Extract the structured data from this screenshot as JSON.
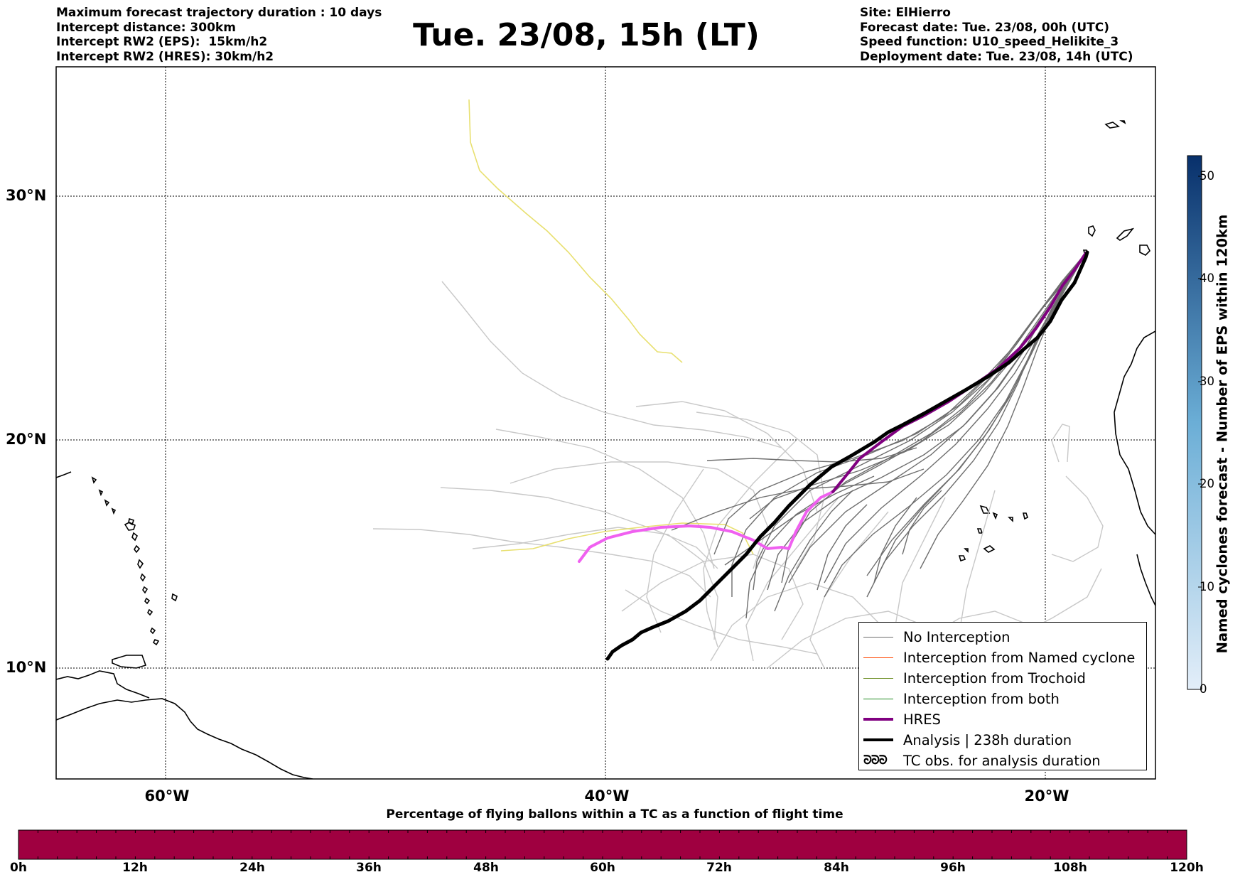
{
  "header": {
    "title": "Tue. 23/08, 15h (LT)",
    "left_lines": [
      "Maximum forecast trajectory duration : 10 days",
      "Intercept distance: 300km",
      "Intercept RW2 (EPS):  15km/h2",
      "Intercept RW2 (HRES): 30km/h2"
    ],
    "right_lines": [
      "Site: ElHierro",
      "Forecast date: Tue. 23/08, 00h (UTC)",
      "Speed function: U10_speed_Helikite_3",
      "Deployment date: Tue. 23/08, 14h (UTC)"
    ]
  },
  "map": {
    "lat_labels": [
      "30°N",
      "20°N",
      "10°N"
    ],
    "lon_labels": [
      "60°W",
      "40°W",
      "20°W"
    ],
    "grid_lats": [
      30,
      20,
      10
    ],
    "grid_lons": [
      -60,
      -40,
      -20
    ],
    "extent": {
      "lon_min": -65,
      "lon_max": -15,
      "lat_min": 4.7,
      "lat_max": 34
    },
    "site": {
      "lon": -17.9,
      "lat": 27.8
    }
  },
  "legend": {
    "items": [
      {
        "label": "No Interception",
        "color": "#6e6e6e"
      },
      {
        "label": "Interception from Named cyclone",
        "color": "#ff4500"
      },
      {
        "label": "Interception from Trochoid",
        "color": "#6b8e23"
      },
      {
        "label": "Interception from both",
        "color": "#228b22"
      },
      {
        "label": "HRES",
        "color": "#800080"
      },
      {
        "label": "Analysis | 238h duration",
        "color": "#000000"
      }
    ],
    "tc_symbol": "ᘐᘐᘐ",
    "tc_label": "TC obs. for analysis duration"
  },
  "colorbar": {
    "title": "Named cyclones forecast - Number of EPS within 120km",
    "ticks": [
      "0",
      "10",
      "20",
      "30",
      "40",
      "50"
    ],
    "min": 0,
    "max": 52,
    "color_low": "#e3eef9",
    "color_high": "#08306b"
  },
  "flight_bar": {
    "title": "Percentage of flying ballons within a TC as a function of flight time",
    "ticks": [
      "0h",
      "12h",
      "24h",
      "36h",
      "48h",
      "60h",
      "72h",
      "84h",
      "96h",
      "108h",
      "120h"
    ],
    "fill_color": "#9f0040"
  },
  "colors": {
    "eps_tracks": "#6e6e6e",
    "eps_tracks_far": "#c8c8c8",
    "yellow_track": "#e8e070",
    "hres_light": "#f060f0",
    "hres": "#800080",
    "analysis": "#000000"
  }
}
